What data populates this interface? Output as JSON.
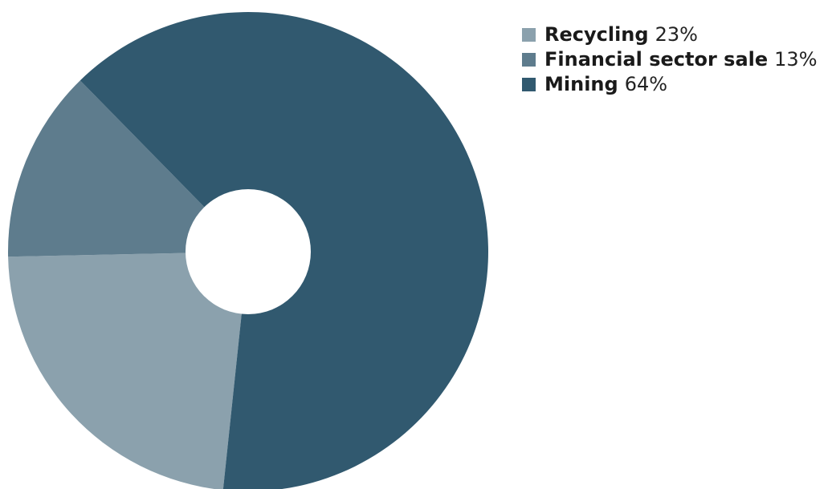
{
  "chart_data": {
    "type": "pie",
    "style": "donut",
    "start_angle_deg": 96,
    "direction": "clockwise",
    "slices": [
      {
        "label": "Recycling",
        "value": 23,
        "value_text": "23%",
        "color": "#8BA1AD"
      },
      {
        "label": "Financial sector sale",
        "value": 13,
        "value_text": "13%",
        "color": "#5E7C8D"
      },
      {
        "label": "Mining",
        "value": 64,
        "value_text": "64%",
        "color": "#31596F"
      }
    ],
    "legend_position": "top-right",
    "hole_color": "#FFFFFF"
  }
}
